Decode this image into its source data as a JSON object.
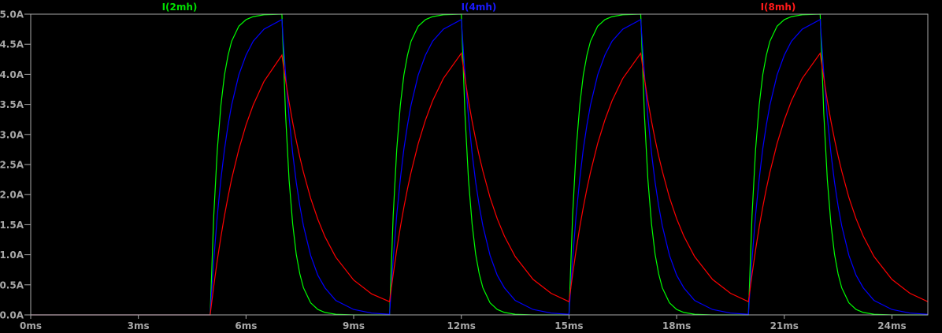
{
  "chart_data": {
    "type": "line",
    "title": "",
    "xlabel": "",
    "ylabel": "",
    "xlim": [
      0,
      25
    ],
    "ylim": [
      0,
      5
    ],
    "grid": false,
    "legend_placement": "top",
    "background": "#000000",
    "axis_color": "#a8a8a8",
    "x_ticks": [
      0,
      3,
      6,
      9,
      12,
      15,
      18,
      21,
      24
    ],
    "x_tick_labels": [
      "0ms",
      "3ms",
      "6ms",
      "9ms",
      "12ms",
      "15ms",
      "18ms",
      "21ms",
      "24ms"
    ],
    "y_ticks": [
      0,
      0.5,
      1,
      1.5,
      2,
      2.5,
      3,
      3.5,
      4,
      4.5,
      5
    ],
    "y_tick_labels": [
      "0.0A",
      "0.5A",
      "1.0A",
      "1.5A",
      "2.0A",
      "2.5A",
      "3.0A",
      "3.5A",
      "4.0A",
      "4.5A",
      "5.0A"
    ],
    "x": [
      0,
      5,
      5.1,
      5.2,
      5.3,
      5.4,
      5.5,
      5.6,
      5.8,
      6,
      6.2,
      6.5,
      7,
      7.1,
      7.2,
      7.3,
      7.4,
      7.5,
      7.6,
      7.8,
      8,
      8.2,
      8.5,
      9,
      9.5,
      10,
      10.1,
      10.2,
      10.3,
      10.4,
      10.5,
      10.6,
      10.8,
      11,
      11.2,
      11.5,
      12,
      12.1,
      12.2,
      12.3,
      12.4,
      12.5,
      12.6,
      12.8,
      13,
      13.2,
      13.5,
      14,
      14.5,
      15,
      15.1,
      15.2,
      15.3,
      15.4,
      15.5,
      15.6,
      15.8,
      16,
      16.2,
      16.5,
      17,
      17.1,
      17.2,
      17.3,
      17.4,
      17.5,
      17.6,
      17.8,
      18,
      18.2,
      18.5,
      19,
      19.5,
      20,
      20.1,
      20.2,
      20.3,
      20.4,
      20.5,
      20.6,
      20.8,
      21,
      21.2,
      21.5,
      22,
      22.1,
      22.2,
      22.3,
      22.4,
      22.5,
      22.6,
      22.8,
      23,
      23.2,
      23.5,
      24,
      24.5,
      25
    ],
    "series": [
      {
        "name": "I(2mh)",
        "color": "#00ff00",
        "values": [
          0,
          0,
          1.65,
          2.75,
          3.49,
          3.99,
          4.32,
          4.55,
          4.8,
          4.91,
          4.96,
          4.99,
          5.0,
          3.35,
          2.25,
          1.51,
          1.01,
          0.68,
          0.45,
          0.2,
          0.09,
          0.04,
          0.01,
          0,
          0,
          0,
          1.65,
          2.75,
          3.49,
          3.99,
          4.32,
          4.55,
          4.8,
          4.91,
          4.96,
          4.99,
          5.0,
          3.35,
          2.25,
          1.51,
          1.01,
          0.68,
          0.45,
          0.2,
          0.09,
          0.04,
          0.01,
          0,
          0,
          0,
          1.65,
          2.75,
          3.49,
          3.99,
          4.32,
          4.55,
          4.8,
          4.91,
          4.96,
          4.99,
          5.0,
          3.35,
          2.25,
          1.51,
          1.01,
          0.68,
          0.45,
          0.2,
          0.09,
          0.04,
          0.01,
          0,
          0,
          0,
          1.65,
          2.75,
          3.49,
          3.99,
          4.32,
          4.55,
          4.8,
          4.91,
          4.96,
          4.99,
          5.0,
          3.35,
          2.25,
          1.51,
          1.01,
          0.68,
          0.45,
          0.2,
          0.09,
          0.04,
          0.01,
          0,
          0,
          0
        ]
      },
      {
        "name": "I(4mh)",
        "color": "#0000ff",
        "values": [
          0,
          0,
          0.91,
          1.65,
          2.26,
          2.75,
          3.16,
          3.49,
          3.99,
          4.32,
          4.55,
          4.75,
          4.91,
          4.02,
          3.29,
          2.69,
          2.21,
          1.81,
          1.48,
          0.99,
          0.66,
          0.45,
          0.24,
          0.09,
          0.03,
          0.01,
          0.92,
          1.66,
          2.26,
          2.76,
          3.16,
          3.49,
          3.99,
          4.32,
          4.55,
          4.75,
          4.91,
          4.02,
          3.29,
          2.69,
          2.21,
          1.81,
          1.48,
          0.99,
          0.66,
          0.45,
          0.24,
          0.09,
          0.03,
          0.01,
          0.92,
          1.66,
          2.26,
          2.76,
          3.16,
          3.49,
          3.99,
          4.32,
          4.55,
          4.75,
          4.91,
          4.02,
          3.29,
          2.69,
          2.21,
          1.81,
          1.48,
          0.99,
          0.66,
          0.45,
          0.24,
          0.09,
          0.03,
          0.01,
          0.92,
          1.66,
          2.26,
          2.76,
          3.16,
          3.49,
          3.99,
          4.32,
          4.55,
          4.75,
          4.91,
          4.02,
          3.29,
          2.69,
          2.21,
          1.81,
          1.48,
          0.99,
          0.66,
          0.45,
          0.24,
          0.09,
          0.03,
          0.01
        ]
      },
      {
        "name": "I(8mh)",
        "color": "#ff0000",
        "values": [
          0,
          0,
          0.48,
          0.91,
          1.3,
          1.65,
          1.97,
          2.26,
          2.75,
          3.16,
          3.49,
          3.88,
          4.32,
          3.91,
          3.54,
          3.2,
          2.9,
          2.62,
          2.37,
          1.94,
          1.59,
          1.3,
          0.96,
          0.58,
          0.35,
          0.22,
          0.67,
          1.08,
          1.46,
          1.79,
          2.1,
          2.37,
          2.85,
          3.24,
          3.56,
          3.93,
          4.35,
          3.94,
          3.56,
          3.22,
          2.92,
          2.64,
          2.39,
          1.95,
          1.6,
          1.31,
          0.97,
          0.59,
          0.36,
          0.22,
          0.67,
          1.08,
          1.46,
          1.79,
          2.1,
          2.37,
          2.85,
          3.24,
          3.56,
          3.93,
          4.35,
          3.94,
          3.56,
          3.22,
          2.92,
          2.64,
          2.39,
          1.95,
          1.6,
          1.31,
          0.97,
          0.59,
          0.36,
          0.22,
          0.67,
          1.08,
          1.46,
          1.79,
          2.1,
          2.37,
          2.85,
          3.24,
          3.56,
          3.93,
          4.35,
          3.94,
          3.56,
          3.22,
          2.92,
          2.64,
          2.39,
          1.95,
          1.6,
          1.31,
          0.97,
          0.59,
          0.36,
          0.22
        ]
      }
    ]
  }
}
